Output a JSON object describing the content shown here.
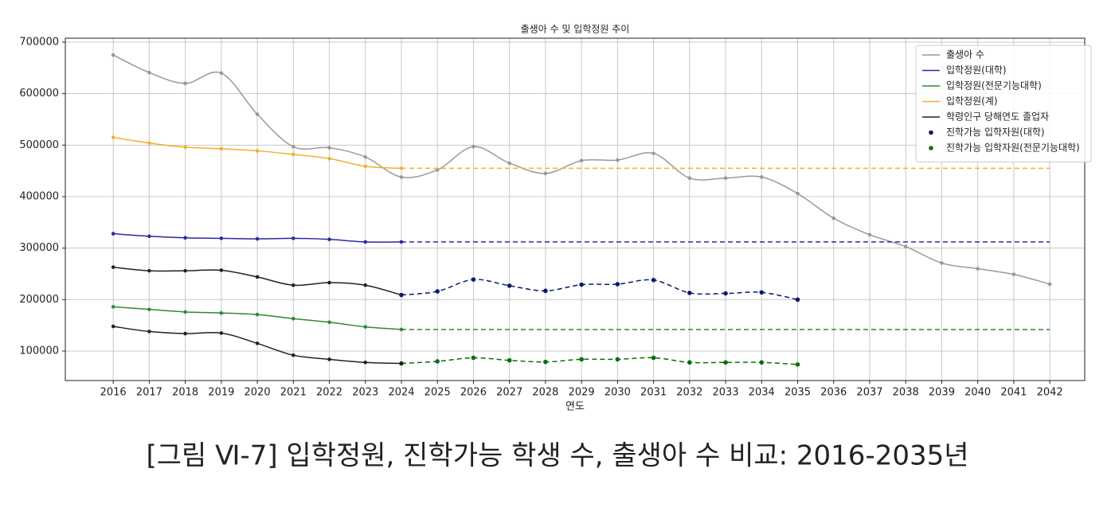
{
  "chart_data": {
    "type": "line",
    "title": "출생아 수 및 입학정원 추이",
    "x_label": "연도",
    "caption": "[그림 Ⅵ-7] 입학정원, 진학가능 학생 수, 출생아 수 비교: 2016-2035년",
    "x": [
      2016,
      2017,
      2018,
      2019,
      2020,
      2021,
      2022,
      2023,
      2024,
      2025,
      2026,
      2027,
      2028,
      2029,
      2030,
      2031,
      2032,
      2033,
      2034,
      2035,
      2036,
      2037,
      2038,
      2039,
      2040,
      2041,
      2042
    ],
    "xlim": [
      2014.67,
      2042.97
    ],
    "xticks": [
      2016,
      2017,
      2018,
      2019,
      2020,
      2021,
      2022,
      2023,
      2024,
      2025,
      2026,
      2027,
      2028,
      2029,
      2030,
      2031,
      2032,
      2033,
      2034,
      2035,
      2036,
      2037,
      2038,
      2039,
      2040,
      2041,
      2042
    ],
    "ylim": [
      42800,
      707700
    ],
    "yticks": [
      100000,
      200000,
      300000,
      400000,
      500000,
      600000,
      700000
    ],
    "grid": true,
    "legend": "upper right",
    "series": [
      {
        "name": "출생아 수",
        "color": "#999999",
        "line": "solid",
        "markers": true,
        "values": [
          675000,
          641000,
          620000,
          640000,
          560000,
          497000,
          495000,
          477000,
          438000,
          452000,
          497000,
          465000,
          445000,
          470000,
          471000,
          484000,
          436000,
          436000,
          438000,
          406000,
          358000,
          326000,
          303000,
          271000,
          260000,
          249000,
          230000
        ]
      },
      {
        "name": "입학정원(대학)",
        "color": "#2a2aa0",
        "line": "solid",
        "markers": true,
        "values": [
          328000,
          323000,
          320000,
          319000,
          318000,
          319000,
          317000,
          312000,
          312000,
          null,
          null,
          null,
          null,
          null,
          null,
          null,
          null,
          null,
          null,
          null,
          null,
          null,
          null,
          null,
          null,
          null,
          null
        ]
      },
      {
        "name": "입학정원(전문기능대학)",
        "color": "#2e8b2e",
        "line": "solid",
        "markers": true,
        "values": [
          186000,
          181000,
          176000,
          174000,
          171000,
          163000,
          156000,
          147000,
          142000,
          null,
          null,
          null,
          null,
          null,
          null,
          null,
          null,
          null,
          null,
          null,
          null,
          null,
          null,
          null,
          null,
          null,
          null
        ]
      },
      {
        "name": "입학정원(계)",
        "color": "#f2b02e",
        "line": "solid",
        "markers": true,
        "values": [
          515000,
          504000,
          496000,
          493000,
          489000,
          482000,
          474000,
          459000,
          455000,
          null,
          null,
          null,
          null,
          null,
          null,
          null,
          null,
          null,
          null,
          null,
          null,
          null,
          null,
          null,
          null,
          null,
          null
        ]
      },
      {
        "name": "학령인구 당해연도 졸업자",
        "color": "#222222",
        "line": "solid",
        "markers": true,
        "values": [
          263000,
          256000,
          256000,
          257000,
          244000,
          228000,
          233000,
          228000,
          209000,
          null,
          null,
          null,
          null,
          null,
          null,
          null,
          null,
          null,
          null,
          null,
          null,
          null,
          null,
          null,
          null,
          null,
          null
        ]
      },
      {
        "name": "진학가능 입학자원(대학)",
        "color": "#0a1a6e",
        "line": "dashed",
        "markers": true,
        "legend_symbol": "marker",
        "values": [
          null,
          null,
          null,
          null,
          null,
          null,
          null,
          null,
          209000,
          216000,
          239000,
          227000,
          217000,
          229000,
          230000,
          238000,
          213000,
          212000,
          214000,
          200000,
          null,
          null,
          null,
          null,
          null,
          null,
          null
        ]
      },
      {
        "name": "진학가능 입학자원(전문기능대학)",
        "color": "#0a6e0a",
        "line": "dashed",
        "markers": true,
        "legend_symbol": "marker",
        "values": [
          null,
          null,
          null,
          null,
          null,
          null,
          null,
          null,
          76000,
          80000,
          87000,
          82000,
          79000,
          84000,
          84000,
          87000,
          78000,
          78000,
          78000,
          74000,
          null,
          null,
          null,
          null,
          null,
          null,
          null
        ]
      },
      {
        "color": "#222222",
        "line": "solid",
        "markers": true,
        "values": [
          148000,
          138000,
          134000,
          135000,
          115000,
          92000,
          84000,
          78000,
          76000,
          null,
          null,
          null,
          null,
          null,
          null,
          null,
          null,
          null,
          null,
          null,
          null,
          null,
          null,
          null,
          null,
          null,
          null
        ]
      },
      {
        "color": "#2a2aa0",
        "line": "dashed",
        "markers": false,
        "values": [
          null,
          null,
          null,
          null,
          null,
          null,
          null,
          null,
          312000,
          312000,
          312000,
          312000,
          312000,
          312000,
          312000,
          312000,
          312000,
          312000,
          312000,
          312000,
          312000,
          312000,
          312000,
          312000,
          312000,
          312000,
          312000
        ]
      },
      {
        "color": "#2e8b2e",
        "line": "dashed",
        "markers": false,
        "values": [
          null,
          null,
          null,
          null,
          null,
          null,
          null,
          null,
          142000,
          142000,
          142000,
          142000,
          142000,
          142000,
          142000,
          142000,
          142000,
          142000,
          142000,
          142000,
          142000,
          142000,
          142000,
          142000,
          142000,
          142000,
          142000
        ]
      },
      {
        "color": "#f2b02e",
        "line": "dashed",
        "markers": false,
        "values": [
          null,
          null,
          null,
          null,
          null,
          null,
          null,
          null,
          455000,
          455000,
          455000,
          455000,
          455000,
          455000,
          455000,
          455000,
          455000,
          455000,
          455000,
          455000,
          455000,
          455000,
          455000,
          455000,
          455000,
          455000,
          455000
        ]
      }
    ]
  }
}
